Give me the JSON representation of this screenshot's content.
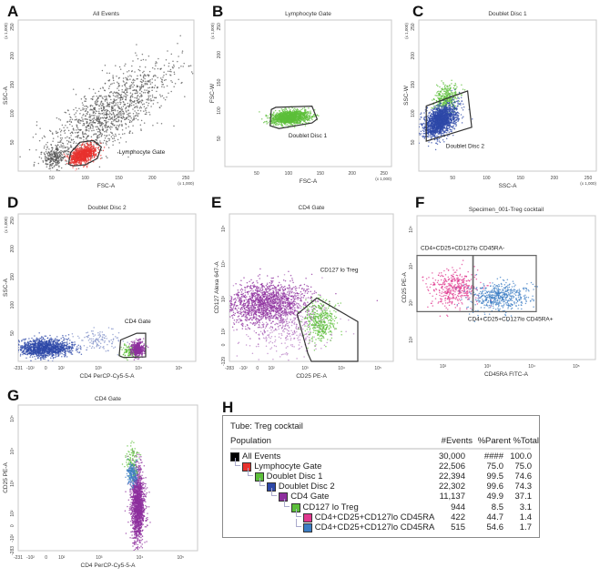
{
  "chart_data": [
    {
      "id": "A",
      "type": "scatter",
      "letter": "A",
      "title": "All Events",
      "xlabel": "FSC-A",
      "ylabel": "SSC-A",
      "x_unit": "(x 1,000)",
      "y_unit": "(x 1,000)",
      "xaxis": {
        "scale": "linear",
        "range": [
          0,
          262
        ],
        "ticks": [
          {
            "v": 50,
            "label": "50"
          },
          {
            "v": 100,
            "label": "100"
          },
          {
            "v": 150,
            "label": "150"
          },
          {
            "v": 200,
            "label": "200"
          },
          {
            "v": 250,
            "label": "250"
          }
        ]
      },
      "yaxis": {
        "scale": "linear",
        "range": [
          0,
          262
        ],
        "ticks": [
          {
            "v": 50,
            "label": "50"
          },
          {
            "v": 100,
            "label": "100"
          },
          {
            "v": 150,
            "label": "150"
          },
          {
            "v": 200,
            "label": "200"
          },
          {
            "v": 250,
            "label": "250"
          }
        ]
      },
      "populations": [
        {
          "name": "All Events",
          "color": "#555555",
          "n": 1300,
          "cx": 135,
          "cy": 100,
          "sd_x": 48,
          "sd_y": 45,
          "rho": 0.75
        },
        {
          "name": "All Events",
          "color": "#555555",
          "n": 250,
          "cx": 55,
          "cy": 25,
          "sd_x": 8,
          "sd_y": 10,
          "rho": 0.1
        },
        {
          "name": "Lymphocyte Gate",
          "color": "#e8322d",
          "n": 900,
          "cx": 96,
          "cy": 28,
          "sd_x": 10,
          "sd_y": 8,
          "rho": 0.45
        }
      ],
      "gates": [
        {
          "label": "Lymphocyte Gate",
          "points": [
            [
              75,
              12
            ],
            [
              78,
              32
            ],
            [
              92,
              50
            ],
            [
              112,
              53
            ],
            [
              124,
              42
            ],
            [
              118,
              22
            ],
            [
              100,
              11
            ],
            [
              82,
              9
            ]
          ]
        }
      ]
    },
    {
      "id": "B",
      "type": "scatter",
      "letter": "B",
      "title": "Lymphocyte Gate",
      "xlabel": "FSC-A",
      "ylabel": "FSC-W",
      "x_unit": "(x 1,000)",
      "y_unit": "(x 1,000)",
      "xaxis": {
        "scale": "linear",
        "range": [
          0,
          262
        ],
        "ticks": [
          {
            "v": 50,
            "label": "50"
          },
          {
            "v": 100,
            "label": "100"
          },
          {
            "v": 150,
            "label": "150"
          },
          {
            "v": 200,
            "label": "200"
          },
          {
            "v": 250,
            "label": "250"
          }
        ]
      },
      "yaxis": {
        "scale": "linear",
        "range": [
          0,
          262
        ],
        "ticks": [
          {
            "v": 50,
            "label": "50"
          },
          {
            "v": 100,
            "label": "100"
          },
          {
            "v": 150,
            "label": "150"
          },
          {
            "v": 200,
            "label": "200"
          },
          {
            "v": 250,
            "label": "250"
          }
        ]
      },
      "populations": [
        {
          "name": "Doublet Disc 1",
          "color": "#5cbf3a",
          "n": 1400,
          "cx": 103,
          "cy": 88,
          "sd_x": 15,
          "sd_y": 6,
          "rho": 0.2
        }
      ],
      "gates": [
        {
          "label": "Doublet Disc 1",
          "points": [
            [
              73,
              102
            ],
            [
              71,
              73
            ],
            [
              85,
              68
            ],
            [
              137,
              78
            ],
            [
              145,
              85
            ],
            [
              137,
              108
            ],
            [
              80,
              106
            ]
          ]
        }
      ]
    },
    {
      "id": "C",
      "type": "scatter",
      "letter": "C",
      "title": "Doublet Disc 1",
      "xlabel": "SSC-A",
      "ylabel": "SSC-W",
      "x_unit": "(x 1,000)",
      "y_unit": "(x 1,000)",
      "xaxis": {
        "scale": "linear",
        "range": [
          0,
          262
        ],
        "ticks": [
          {
            "v": 50,
            "label": "50"
          },
          {
            "v": 100,
            "label": "100"
          },
          {
            "v": 150,
            "label": "150"
          },
          {
            "v": 200,
            "label": "200"
          },
          {
            "v": 250,
            "label": "250"
          }
        ]
      },
      "yaxis": {
        "scale": "linear",
        "range": [
          0,
          262
        ],
        "ticks": [
          {
            "v": 50,
            "label": "50"
          },
          {
            "v": 100,
            "label": "100"
          },
          {
            "v": 150,
            "label": "150"
          },
          {
            "v": 200,
            "label": "200"
          },
          {
            "v": 250,
            "label": "250"
          }
        ]
      },
      "populations": [
        {
          "name": "Doublet Disc 1",
          "color": "#5cbf3a",
          "n": 350,
          "cx": 40,
          "cy": 125,
          "sd_x": 9,
          "sd_y": 12,
          "rho": 0.3
        },
        {
          "name": "Doublet Disc 2",
          "color": "#2d48a8",
          "n": 1800,
          "cx": 32,
          "cy": 88,
          "sd_x": 12,
          "sd_y": 14,
          "rho": 0.45
        }
      ],
      "gates": [
        {
          "label": "Doublet Disc 2",
          "points": [
            [
              11,
              52
            ],
            [
              11,
              113
            ],
            [
              72,
              139
            ],
            [
              78,
              76
            ]
          ]
        }
      ]
    },
    {
      "id": "D",
      "type": "scatter",
      "letter": "D",
      "title": "Doublet Disc 2",
      "xlabel": "CD4 PerCP-Cy5-5-A",
      "ylabel": "SSC-A",
      "y_unit": "(x 1,000)",
      "xaxis": {
        "scale": "biexponential",
        "range": [
          -231,
          262144
        ],
        "ticks": [
          {
            "v": -231,
            "label": "-231"
          },
          {
            "v": -100,
            "label": "-10²"
          },
          {
            "v": 0,
            "label": "0"
          },
          {
            "v": 100,
            "label": "10²"
          },
          {
            "v": 1000,
            "label": "10³"
          },
          {
            "v": 10000,
            "label": "10⁴"
          },
          {
            "v": 100000,
            "label": "10⁵"
          }
        ]
      },
      "yaxis": {
        "scale": "linear",
        "range": [
          0,
          262
        ],
        "ticks": [
          {
            "v": 50,
            "label": "50"
          },
          {
            "v": 100,
            "label": "100"
          },
          {
            "v": 150,
            "label": "150"
          },
          {
            "v": 200,
            "label": "200"
          },
          {
            "v": 250,
            "label": "250"
          }
        ]
      },
      "populations": [
        {
          "name": "Doublet Disc 2",
          "color": "#2d48a8",
          "n": 1300,
          "cx": 0,
          "cy": 24,
          "sd_x": 0.33,
          "sd_y": 8,
          "rho": 0
        },
        {
          "name": "Doublet Disc 2",
          "color": "#8090c8",
          "n": 120,
          "cx": 1000,
          "cy": 38,
          "sd_x": 0.25,
          "sd_y": 10,
          "rho": 0
        },
        {
          "name": "CD127 lo Treg",
          "color": "#5cbf3a",
          "n": 120,
          "cx": 6000,
          "cy": 18,
          "sd_x": 0.1,
          "sd_y": 6,
          "rho": 0
        },
        {
          "name": "CD4 Gate",
          "color": "#8e2f9e",
          "n": 450,
          "cx": 9500,
          "cy": 22,
          "sd_x": 0.08,
          "sd_y": 7,
          "rho": 0
        }
      ],
      "gates": [
        {
          "label": "CD4 Gate",
          "points": [
            [
              3600,
              38
            ],
            [
              3300,
              10
            ],
            [
              4200,
              7
            ],
            [
              15000,
              8
            ],
            [
              15000,
              50
            ],
            [
              9000,
              50
            ]
          ]
        }
      ]
    },
    {
      "id": "E",
      "type": "scatter",
      "letter": "E",
      "title": "CD4 Gate",
      "xlabel": "CD25 PE-A",
      "ylabel": "CD127 Alexa 647-A",
      "xaxis": {
        "scale": "biexponential",
        "range": [
          -283,
          262144
        ],
        "ticks": [
          {
            "v": -283,
            "label": "-283"
          },
          {
            "v": -100,
            "label": "-10²"
          },
          {
            "v": 0,
            "label": "0"
          },
          {
            "v": 100,
            "label": "10²"
          },
          {
            "v": 1000,
            "label": "10³"
          },
          {
            "v": 10000,
            "label": "10⁴"
          },
          {
            "v": 100000,
            "label": "10⁵"
          }
        ]
      },
      "yaxis": {
        "scale": "biexponential",
        "range": [
          -129,
          262144
        ],
        "ticks": [
          {
            "v": -129,
            "label": "-129"
          },
          {
            "v": 0,
            "label": "0"
          },
          {
            "v": 100,
            "label": "10²"
          },
          {
            "v": 1000,
            "label": "10³"
          },
          {
            "v": 10000,
            "label": "10⁴"
          },
          {
            "v": 100000,
            "label": "10⁵"
          }
        ]
      },
      "populations": [
        {
          "name": "CD4 Gate",
          "color": "#8e2f9e",
          "n": 1500,
          "cx": 60,
          "cy": 750,
          "sd_x": 0.55,
          "sd_y": 0.3,
          "rho": 0.1
        },
        {
          "name": "CD4 Gate",
          "color": "#b77cc4",
          "n": 450,
          "cx": 300,
          "cy": 200,
          "sd_x": 0.6,
          "sd_y": 0.45,
          "rho": 0
        },
        {
          "name": "CD127 lo Treg",
          "color": "#5cbf3a",
          "n": 380,
          "cx": 2500,
          "cy": 230,
          "sd_x": 0.22,
          "sd_y": 0.3,
          "rho": 0
        }
      ],
      "gates": [
        {
          "label": "CD127 lo Treg",
          "points": [
            [
              610,
              365
            ],
            [
              2100,
              1070
            ],
            [
              28000,
              220
            ],
            [
              28000,
              -129
            ],
            [
              1500,
              -129
            ],
            [
              1200,
              -60
            ]
          ]
        }
      ]
    },
    {
      "id": "F",
      "type": "scatter",
      "letter": "F",
      "title": "Specimen_001-Treg cocktail",
      "xlabel": "CD45RA FITC-A",
      "ylabel": "CD25 PE-A",
      "xaxis": {
        "scale": "log",
        "range": [
          26,
          270000
        ],
        "ticks": [
          {
            "v": 100,
            "label": "10²"
          },
          {
            "v": 1000,
            "label": "10³"
          },
          {
            "v": 10000,
            "label": "10⁴"
          },
          {
            "v": 100000,
            "label": "10⁵"
          }
        ]
      },
      "yaxis": {
        "scale": "log",
        "range": [
          29,
          234000
        ],
        "ticks": [
          {
            "v": 100,
            "label": "10²"
          },
          {
            "v": 1000,
            "label": "10³"
          },
          {
            "v": 10000,
            "label": "10⁴"
          },
          {
            "v": 100000,
            "label": "10⁵"
          }
        ]
      },
      "populations": [
        {
          "name": "CD4+CD25+CD127lo CD45RA-",
          "color": "#e0388f",
          "n": 422,
          "cx": 175,
          "cy": 2400,
          "sd_x": 0.28,
          "sd_y": 0.25,
          "rho": 0
        },
        {
          "name": "CD4+CD25+CD127lo CD45RA+",
          "color": "#3c7dc4",
          "n": 515,
          "cx": 1900,
          "cy": 1500,
          "sd_x": 0.33,
          "sd_y": 0.2,
          "rho": 0
        }
      ],
      "gates": [
        {
          "label": "CD4+CD25+CD127lo CD45RA-",
          "points": [
            [
              26,
              580
            ],
            [
              26,
              19500
            ],
            [
              470,
              19500
            ],
            [
              470,
              580
            ]
          ]
        },
        {
          "label": "CD4+CD25+CD127lo CD45RA+",
          "points": [
            [
              480,
              580
            ],
            [
              480,
              19500
            ],
            [
              12600,
              19500
            ],
            [
              12600,
              580
            ]
          ]
        }
      ]
    },
    {
      "id": "G",
      "type": "scatter",
      "letter": "G",
      "title": "CD4 Gate",
      "xlabel": "CD4 PerCP-Cy5-5-A",
      "ylabel": "CD25 PE-A",
      "xaxis": {
        "scale": "biexponential",
        "range": [
          -231,
          262144
        ],
        "ticks": [
          {
            "v": -231,
            "label": "-231"
          },
          {
            "v": -100,
            "label": "-10²"
          },
          {
            "v": 0,
            "label": "0"
          },
          {
            "v": 100,
            "label": "10²"
          },
          {
            "v": 1000,
            "label": "10³"
          },
          {
            "v": 10000,
            "label": "10⁴"
          },
          {
            "v": 100000,
            "label": "10⁵"
          }
        ]
      },
      "yaxis": {
        "scale": "biexponential",
        "range": [
          -283,
          262144
        ],
        "ticks": [
          {
            "v": -283,
            "label": "-283"
          },
          {
            "v": -100,
            "label": "-10²"
          },
          {
            "v": 0,
            "label": "0"
          },
          {
            "v": 100,
            "label": "10²"
          },
          {
            "v": 1000,
            "label": "10³"
          },
          {
            "v": 10000,
            "label": "10⁴"
          },
          {
            "v": 100000,
            "label": "10⁵"
          }
        ]
      },
      "populations": [
        {
          "name": "CD4 Gate",
          "color": "#8e2f9e",
          "n": 1600,
          "cx": 9000,
          "cy": 200,
          "sd_x": 0.08,
          "sd_y": 0.55,
          "rho": 0
        },
        {
          "name": "CD127 lo Treg",
          "color": "#5cbf3a",
          "n": 120,
          "cx": 6500,
          "cy": 4500,
          "sd_x": 0.09,
          "sd_y": 0.25,
          "rho": 0
        },
        {
          "name": "CD4+CD25+CD127lo CD45RA+",
          "color": "#3c7dc4",
          "n": 180,
          "cx": 6500,
          "cy": 2000,
          "sd_x": 0.06,
          "sd_y": 0.18,
          "rho": 0
        }
      ],
      "gates": []
    }
  ],
  "table": {
    "letter": "H",
    "tube": "Tube: Treg cocktail",
    "columns": [
      "Population",
      "#Events",
      "%Parent",
      "%Total"
    ],
    "rows": [
      {
        "name": "All Events",
        "level": 0,
        "color": "#000000",
        "events": "30,000",
        "parent": "####",
        "total": "100.0"
      },
      {
        "name": "Lymphocyte Gate",
        "level": 1,
        "color": "#e8322d",
        "events": "22,506",
        "parent": "75.0",
        "total": "75.0"
      },
      {
        "name": "Doublet Disc 1",
        "level": 2,
        "color": "#5cbf3a",
        "events": "22,394",
        "parent": "99.5",
        "total": "74.6"
      },
      {
        "name": "Doublet Disc 2",
        "level": 3,
        "color": "#2d48a8",
        "events": "22,302",
        "parent": "99.6",
        "total": "74.3"
      },
      {
        "name": "CD4 Gate",
        "level": 4,
        "color": "#8e2f9e",
        "events": "11,137",
        "parent": "49.9",
        "total": "37.1"
      },
      {
        "name": "CD127 lo Treg",
        "level": 5,
        "color": "#5cbf3a",
        "events": "944",
        "parent": "8.5",
        "total": "3.1"
      },
      {
        "name": "CD4+CD25+CD127lo CD45RA",
        "level": 6,
        "color": "#e0388f",
        "events": "422",
        "parent": "44.7",
        "total": "1.4"
      },
      {
        "name": "CD4+CD25+CD127lo CD45RA",
        "level": 6,
        "color": "#3c7dc4",
        "events": "515",
        "parent": "54.6",
        "total": "1.7"
      }
    ]
  }
}
